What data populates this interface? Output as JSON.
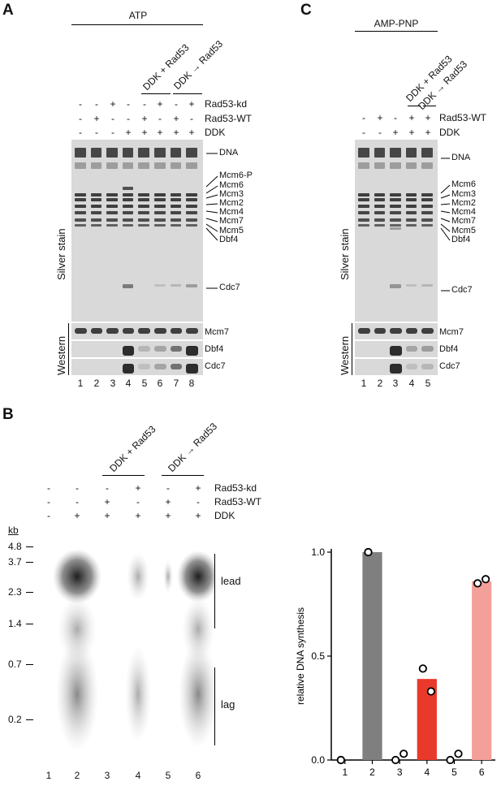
{
  "panels": {
    "A": {
      "letter": "A",
      "header": "ATP",
      "group1": "DDK + Rad53",
      "group2": "DDK",
      "arrow": "→",
      "group2b": "Rad53",
      "rows": [
        {
          "name": "Rad53-kd",
          "values": [
            "-",
            "-",
            "+",
            "-",
            "-",
            "+",
            "-",
            "+"
          ]
        },
        {
          "name": "Rad53-WT",
          "values": [
            "-",
            "+",
            "-",
            "-",
            "+",
            "-",
            "+",
            "-"
          ]
        },
        {
          "name": "DDK",
          "values": [
            "-",
            "-",
            "-",
            "+",
            "+",
            "+",
            "+",
            "+"
          ]
        }
      ],
      "silver_label": "Silver stain",
      "western_label": "Western",
      "band_labels": [
        "DNA",
        "Mcm6-P",
        "Mcm6",
        "Mcm3",
        "Mcm2",
        "Mcm4",
        "Mcm7",
        "Mcm5",
        "Dbf4",
        "Cdc7"
      ],
      "western_labels": [
        "Mcm7",
        "Dbf4",
        "Cdc7"
      ],
      "lanes": [
        "1",
        "2",
        "3",
        "4",
        "5",
        "6",
        "7",
        "8"
      ]
    },
    "C": {
      "letter": "C",
      "header": "AMP-PNP",
      "group1": "DDK + Rad53",
      "group2": "DDK",
      "arrow": "→",
      "group2b": "Rad53",
      "rows": [
        {
          "name": "Rad53-WT",
          "values": [
            "-",
            "+",
            "-",
            "+",
            "+"
          ]
        },
        {
          "name": "DDK",
          "values": [
            "-",
            "-",
            "+",
            "+",
            "+"
          ]
        }
      ],
      "silver_label": "Silver stain",
      "western_label": "Western",
      "band_labels": [
        "DNA",
        "Mcm6",
        "Mcm3",
        "Mcm2",
        "Mcm4",
        "Mcm7",
        "Mcm5",
        "Dbf4",
        "Cdc7"
      ],
      "western_labels": [
        "Mcm7",
        "Dbf4",
        "Cdc7"
      ],
      "lanes": [
        "1",
        "2",
        "3",
        "4",
        "5"
      ]
    },
    "B": {
      "letter": "B",
      "group1": "DDK + Rad53",
      "group2": "DDK",
      "arrow": "→",
      "group2b": "Rad53",
      "rows": [
        {
          "name": "Rad53-kd",
          "values": [
            "-",
            "-",
            "-",
            "+",
            "-",
            "+"
          ]
        },
        {
          "name": "Rad53-WT",
          "values": [
            "-",
            "-",
            "+",
            "-",
            "+",
            "-"
          ]
        },
        {
          "name": "DDK",
          "values": [
            "-",
            "+",
            "+",
            "+",
            "+",
            "+"
          ]
        }
      ],
      "kb_label": "kb",
      "kb_markers": [
        "4.8",
        "3.7",
        "2.3",
        "1.4",
        "0.7",
        "0.2"
      ],
      "lead_label": "lead",
      "lag_label": "lag",
      "lanes": [
        "1",
        "2",
        "3",
        "4",
        "5",
        "6"
      ]
    }
  },
  "chart_data": {
    "type": "bar",
    "categories": [
      "1",
      "2",
      "3",
      "4",
      "5",
      "6"
    ],
    "values": [
      0.0,
      1.0,
      0.01,
      0.39,
      0.01,
      0.86
    ],
    "points": [
      [
        0.0,
        0.0
      ],
      [
        1.0,
        1.0
      ],
      [
        0.0,
        0.03
      ],
      [
        0.44,
        0.33
      ],
      [
        0.0,
        0.03
      ],
      [
        0.85,
        0.87
      ]
    ],
    "colors": [
      "#ffffff",
      "#7f7f7f",
      "#ffffff",
      "#e8392b",
      "#ffffff",
      "#f4a09a"
    ],
    "ylabel": "relative DNA synthesis",
    "ylim": [
      0,
      1.0
    ],
    "yticks": [
      "0.0",
      "0.5",
      "1.0"
    ]
  }
}
